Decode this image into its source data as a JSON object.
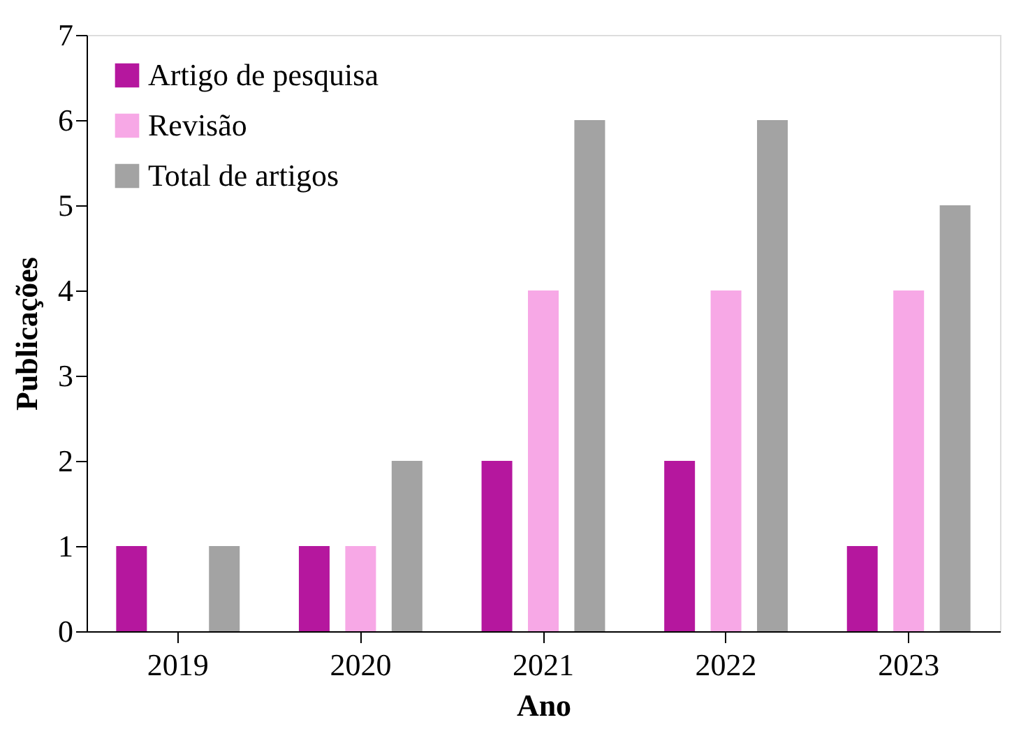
{
  "chart_data": {
    "type": "bar",
    "xlabel": "Ano",
    "ylabel": "Publicações",
    "categories": [
      "2019",
      "2020",
      "2021",
      "2022",
      "2023"
    ],
    "series": [
      {
        "name": "Artigo de pesquisa",
        "color": "#b5179e",
        "values": [
          1,
          1,
          2,
          2,
          1
        ]
      },
      {
        "name": "Revisão",
        "color": "#f7a8e6",
        "values": [
          0,
          1,
          4,
          4,
          4
        ]
      },
      {
        "name": "Total de artigos",
        "color": "#a3a3a3",
        "values": [
          1,
          2,
          6,
          6,
          5
        ]
      }
    ],
    "ylim": [
      0,
      7
    ],
    "yticks": [
      0,
      1,
      2,
      3,
      4,
      5,
      6,
      7
    ],
    "grid": false,
    "legend": "top left"
  }
}
